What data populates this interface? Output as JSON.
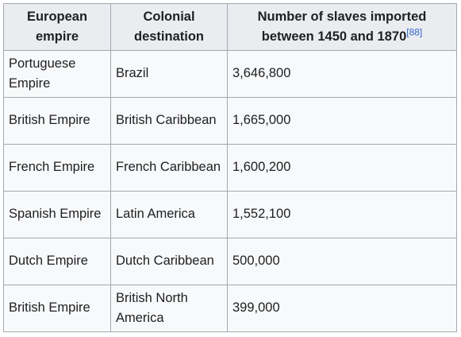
{
  "table": {
    "headers": {
      "empire": "European empire",
      "destination": "Colonial destination",
      "slaves": "Number of slaves imported between 1450 and 1870",
      "slaves_ref": "[88]"
    },
    "rows": [
      {
        "empire": "Portuguese Empire",
        "destination": "Brazil",
        "slaves": "3,646,800"
      },
      {
        "empire": "British Empire",
        "destination": "British Caribbean",
        "slaves": "1,665,000"
      },
      {
        "empire": "French Empire",
        "destination": "French Caribbean",
        "slaves": "1,600,200"
      },
      {
        "empire": "Spanish Empire",
        "destination": "Latin America",
        "slaves": "1,552,100"
      },
      {
        "empire": "Dutch Empire",
        "destination": "Dutch Caribbean",
        "slaves": "500,000"
      },
      {
        "empire": "British Empire",
        "destination": "British North America",
        "slaves": "399,000"
      }
    ]
  }
}
